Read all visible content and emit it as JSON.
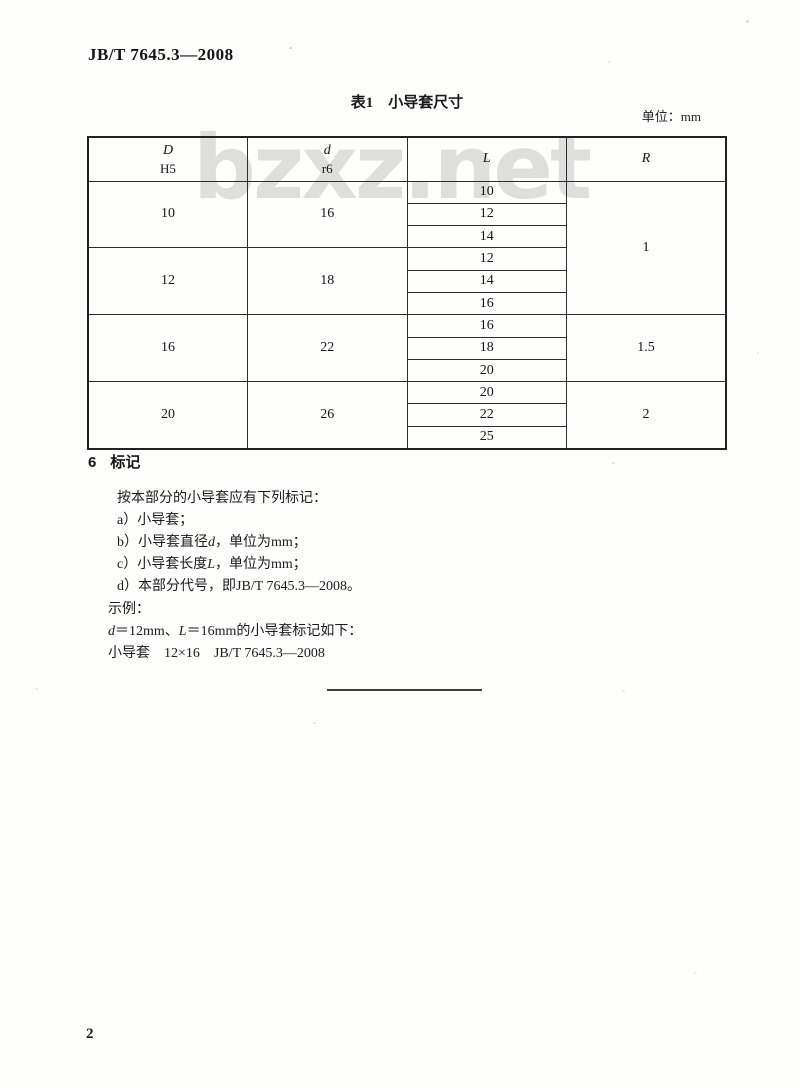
{
  "page": {
    "doc_number": "JB/T 7645.3—2008",
    "page_number": "2"
  },
  "table": {
    "caption": "表1　小导套尺寸",
    "unit_label": "单位：mm",
    "watermark": "bzxz.net",
    "header": {
      "col1_top": "D",
      "col1_sub": "H5",
      "col2_top": "d",
      "col2_sub": "r6",
      "col3": "L",
      "col4": "R"
    },
    "groups": [
      {
        "D": "10",
        "d": "16",
        "L": [
          "10",
          "12",
          "14"
        ]
      },
      {
        "D": "12",
        "d": "18",
        "L": [
          "12",
          "14",
          "16"
        ]
      },
      {
        "D": "16",
        "d": "22",
        "L": [
          "16",
          "18",
          "20"
        ]
      },
      {
        "D": "20",
        "d": "26",
        "L": [
          "20",
          "22",
          "25"
        ]
      }
    ],
    "r_spans": [
      {
        "value": "1"
      },
      {
        "value": "1.5"
      },
      {
        "value": "2"
      }
    ]
  },
  "section": {
    "heading_number": "6",
    "heading_title": "标记",
    "intro": "按本部分的小导套应有下列标记：",
    "items": [
      "a）小导套；",
      "b）小导套直径*d*，单位为mm；",
      "c）小导套长度*L*，单位为mm；",
      "d）本部分代号，即JB/T 7645.3—2008。"
    ],
    "example_label": "示例：",
    "example_condition": "*d*＝12mm、*L*＝16mm的小导套标记如下：",
    "example_marking": "小导套　12×16　JB/T 7645.3—2008"
  }
}
